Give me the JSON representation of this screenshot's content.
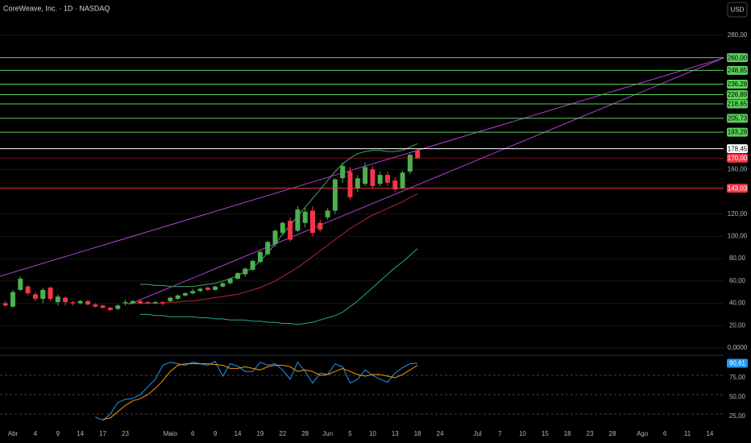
{
  "chart_data": [
    {
      "type": "candlestick",
      "title": "CoreWeave, Inc. · 1D · NASDAQ",
      "currency": "USD",
      "categories": [
        null,
        "Abr",
        null,
        null,
        "4",
        null,
        null,
        "9",
        null,
        null,
        "14",
        null,
        null,
        "17",
        null,
        null,
        "23",
        null,
        null,
        null,
        null,
        null,
        "Maio",
        null,
        null,
        "6",
        null,
        null,
        "9",
        null,
        null,
        "14",
        null,
        null,
        "19",
        null,
        null,
        "22",
        null,
        null,
        "28",
        null,
        null,
        "Jun",
        null,
        null,
        "5",
        null,
        null,
        "10",
        null,
        null,
        "13",
        null,
        null,
        "18",
        null,
        null,
        "24",
        null,
        null,
        null,
        null,
        "Jul",
        null,
        null,
        "7",
        null,
        null,
        "10",
        null,
        null,
        "15",
        null,
        null,
        "18",
        null,
        null,
        "23",
        null,
        null,
        "28",
        null,
        null,
        null,
        "Ago",
        null,
        null,
        "6",
        null,
        null,
        "11",
        null,
        null,
        "14"
      ],
      "open": [
        40,
        37,
        52,
        55,
        48,
        44,
        54,
        41,
        45,
        41,
        40,
        42,
        39,
        38,
        36,
        35,
        40,
        40,
        42,
        41,
        40,
        41,
        42,
        44,
        47,
        49,
        51,
        54,
        52,
        55,
        58,
        62,
        66,
        70,
        77,
        84,
        93,
        103,
        114,
        105,
        112,
        123,
        112,
        117,
        123,
        152,
        158,
        143,
        147,
        160,
        147,
        155,
        150,
        143,
        158,
        177,
        null,
        null,
        null,
        null,
        null,
        null,
        null,
        null,
        null,
        null,
        null,
        null,
        null,
        null,
        null,
        null,
        null,
        null,
        null,
        null,
        null,
        null,
        null,
        null,
        null,
        null,
        null,
        null,
        null,
        null,
        null,
        null,
        null,
        null,
        null,
        null,
        null,
        null,
        null
      ],
      "high": [
        42,
        52,
        64,
        56,
        50,
        54,
        55,
        48,
        46,
        42,
        43,
        43,
        40,
        39,
        37,
        39,
        43,
        43,
        43,
        42,
        42,
        42,
        46,
        48,
        50,
        53,
        54,
        55,
        56,
        59,
        63,
        68,
        72,
        79,
        87,
        96,
        106,
        113,
        117,
        127,
        126,
        127,
        115,
        125,
        152,
        166,
        162,
        155,
        166,
        163,
        158,
        158,
        153,
        159,
        174,
        178.45,
        null,
        null,
        null,
        null,
        null,
        null,
        null,
        null,
        null,
        null,
        null,
        null,
        null,
        null,
        null,
        null,
        null,
        null,
        null,
        null,
        null,
        null,
        null,
        null,
        null,
        null,
        null,
        null,
        null,
        null,
        null,
        null,
        null,
        null,
        null,
        null,
        null,
        null,
        null
      ],
      "low": [
        37,
        36,
        51,
        47,
        42,
        40,
        42,
        38,
        38,
        38,
        39,
        38,
        36,
        35,
        33,
        34,
        38,
        39,
        39,
        39,
        39,
        38,
        41,
        43,
        46,
        48,
        50,
        51,
        51,
        54,
        57,
        61,
        64,
        69,
        76,
        83,
        91,
        101,
        95,
        104,
        108,
        100,
        104,
        115,
        120,
        148,
        133,
        140,
        145,
        143,
        145,
        145,
        140,
        142,
        156,
        169,
        null,
        null,
        null,
        null,
        null,
        null,
        null,
        null,
        null,
        null,
        null,
        null,
        null,
        null,
        null,
        null,
        null,
        null,
        null,
        null,
        null,
        null,
        null,
        null,
        null,
        null,
        null,
        null,
        null,
        null,
        null,
        null,
        null,
        null,
        null,
        null,
        null,
        null,
        null
      ],
      "close": [
        38,
        50,
        62,
        49,
        44,
        52,
        44,
        46,
        41,
        40,
        42,
        39,
        37,
        36,
        34,
        38,
        41,
        42,
        40,
        40,
        41,
        40,
        45,
        47,
        49,
        51,
        53,
        52,
        55,
        58,
        62,
        67,
        71,
        78,
        86,
        95,
        105,
        112,
        97,
        124,
        122,
        103,
        106,
        123,
        151,
        163,
        135,
        152,
        162,
        145,
        155,
        148,
        142,
        157,
        173,
        170,
        null,
        null,
        null,
        null,
        null,
        null,
        null,
        null,
        null,
        null,
        null,
        null,
        null,
        null,
        null,
        null,
        null,
        null,
        null,
        null,
        null,
        null,
        null,
        null,
        null,
        null,
        null,
        null,
        null,
        null,
        null,
        null,
        null,
        null,
        null,
        null,
        null,
        null,
        null
      ],
      "up_color": "#4caf50",
      "down_color": "#f23645",
      "ylim": [
        -5.8,
        311.7
      ],
      "yticks": [
        {
          "value": 280,
          "label": "280,00"
        },
        {
          "value": 160,
          "label": "160,00"
        },
        {
          "value": 120,
          "label": "120,00"
        },
        {
          "value": 100,
          "label": "100,00"
        },
        {
          "value": 80,
          "label": "80,00"
        },
        {
          "value": 60,
          "label": "60,00"
        },
        {
          "value": 40,
          "label": "40,00"
        },
        {
          "value": 20,
          "label": "20,00"
        },
        {
          "value": 0,
          "label": "0,0000"
        }
      ],
      "grid": true,
      "levels": [
        {
          "value": 260,
          "label": "260,00",
          "color": "#5ad15a"
        },
        {
          "value": 248.65,
          "label": "248,65",
          "color": "#5ad15a"
        },
        {
          "value": 236.28,
          "label": "236,28",
          "color": "#5ad15a"
        },
        {
          "value": 226.89,
          "label": "226,89",
          "color": "#5ad15a"
        },
        {
          "value": 218.65,
          "label": "218,65",
          "color": "#5ad15a"
        },
        {
          "value": 205.73,
          "label": "205,73",
          "color": "#5ad15a"
        },
        {
          "value": 193.28,
          "label": "193,28",
          "color": "#5ad15a"
        },
        {
          "value": 178.45,
          "label": "178,45",
          "color": "#ffffff"
        },
        {
          "value": 170,
          "label": "170,00",
          "color": "#f23645"
        },
        {
          "value": 143.03,
          "label": "143,03",
          "color": "#f23645"
        }
      ],
      "series": [
        {
          "color": "#3fa66a",
          "values": [
            null,
            null,
            null,
            null,
            null,
            null,
            null,
            null,
            null,
            null,
            null,
            null,
            null,
            null,
            null,
            null,
            null,
            null,
            57,
            57,
            56,
            56,
            55,
            55,
            55,
            55,
            56,
            57,
            58,
            60,
            62,
            65,
            68,
            72,
            78,
            85,
            93,
            102,
            110,
            118,
            126,
            134,
            142,
            150,
            158,
            165,
            170,
            174,
            176,
            177,
            177,
            176,
            176,
            177,
            180,
            183,
            null,
            null,
            null,
            null,
            null,
            null,
            null,
            null,
            null,
            null,
            null,
            null,
            null,
            null,
            null,
            null,
            null,
            null,
            null,
            null,
            null,
            null,
            null,
            null,
            null,
            null,
            null,
            null,
            null,
            null,
            null,
            null,
            null,
            null,
            null,
            null,
            null,
            null,
            null
          ]
        },
        {
          "color": "#b22833",
          "values": [
            null,
            null,
            null,
            null,
            null,
            null,
            null,
            null,
            null,
            null,
            null,
            null,
            null,
            null,
            null,
            null,
            40,
            40,
            40,
            40,
            40,
            40,
            41,
            41,
            42,
            42,
            43,
            44,
            45,
            46,
            47,
            48,
            50,
            52,
            54,
            57,
            60,
            64,
            68,
            72,
            77,
            82,
            87,
            92,
            97,
            102,
            107,
            111,
            115,
            119,
            122,
            125,
            128,
            131,
            135,
            138,
            null,
            null,
            null,
            null,
            null,
            null,
            null,
            null,
            null,
            null,
            null,
            null,
            null,
            null,
            null,
            null,
            null,
            null,
            null,
            null,
            null,
            null,
            null,
            null,
            null,
            null,
            null,
            null,
            null,
            null,
            null,
            null,
            null,
            null,
            null,
            null,
            null,
            null,
            null
          ]
        },
        {
          "color": "#26a69a",
          "values": [
            null,
            null,
            null,
            null,
            null,
            null,
            null,
            null,
            null,
            null,
            null,
            null,
            null,
            null,
            null,
            null,
            null,
            null,
            30,
            30,
            29,
            29,
            28,
            28,
            28,
            28,
            27,
            27,
            26,
            26,
            25,
            25,
            25,
            24,
            24,
            23,
            23,
            22,
            22,
            21,
            22,
            23,
            25,
            27,
            29,
            32,
            37,
            42,
            48,
            54,
            60,
            66,
            72,
            77,
            83,
            89,
            null,
            null,
            null,
            null,
            null,
            null,
            null,
            null,
            null,
            null,
            null,
            null,
            null,
            null,
            null,
            null,
            null,
            null,
            null,
            null,
            null,
            null,
            null,
            null,
            null,
            null,
            null,
            null,
            null,
            null,
            null,
            null,
            null,
            null,
            null,
            null,
            null,
            null,
            null
          ]
        }
      ]
    },
    {
      "type": "line",
      "ylim": [
        -10.4,
        100
      ],
      "yticks": [
        {
          "value": 75,
          "label": "75,00"
        },
        {
          "value": 50,
          "label": "50,00"
        },
        {
          "value": 25,
          "label": "25,00"
        }
      ],
      "series": [
        {
          "color": "#2196f3",
          "last_value_label": "90,61",
          "values": [
            null,
            null,
            null,
            null,
            null,
            null,
            null,
            null,
            null,
            null,
            null,
            null,
            21,
            17,
            25,
            40,
            44,
            45,
            50,
            60,
            70,
            88,
            92,
            90,
            88,
            92,
            90,
            88,
            93,
            74,
            90,
            87,
            80,
            80,
            92,
            88,
            90,
            82,
            70,
            92,
            80,
            65,
            78,
            76,
            90,
            86,
            65,
            70,
            82,
            75,
            70,
            66,
            78,
            85,
            90,
            90.61,
            null,
            null,
            null,
            null,
            null,
            null,
            null,
            null,
            null,
            null,
            null,
            null,
            null,
            null,
            null,
            null,
            null,
            null,
            null,
            null,
            null,
            null,
            null,
            null,
            null,
            null,
            null,
            null,
            null,
            null,
            null,
            null,
            null,
            null,
            null,
            null,
            null,
            null,
            null
          ]
        },
        {
          "color": "#ff9800",
          "values": [
            null,
            null,
            null,
            null,
            null,
            null,
            null,
            null,
            null,
            null,
            null,
            null,
            null,
            18,
            20,
            28,
            36,
            42,
            45,
            50,
            58,
            68,
            80,
            88,
            90,
            90,
            90,
            90,
            89,
            88,
            84,
            84,
            86,
            84,
            82,
            86,
            88,
            88,
            86,
            80,
            82,
            80,
            75,
            76,
            80,
            84,
            80,
            76,
            74,
            76,
            76,
            74,
            72,
            76,
            82,
            88,
            null,
            null,
            null,
            null,
            null,
            null,
            null,
            null,
            null,
            null,
            null,
            null,
            null,
            null,
            null,
            null,
            null,
            null,
            null,
            null,
            null,
            null,
            null,
            null,
            null,
            null,
            null,
            null,
            null,
            null,
            null,
            null,
            null,
            null,
            null,
            null,
            null,
            null,
            null
          ]
        }
      ]
    }
  ]
}
